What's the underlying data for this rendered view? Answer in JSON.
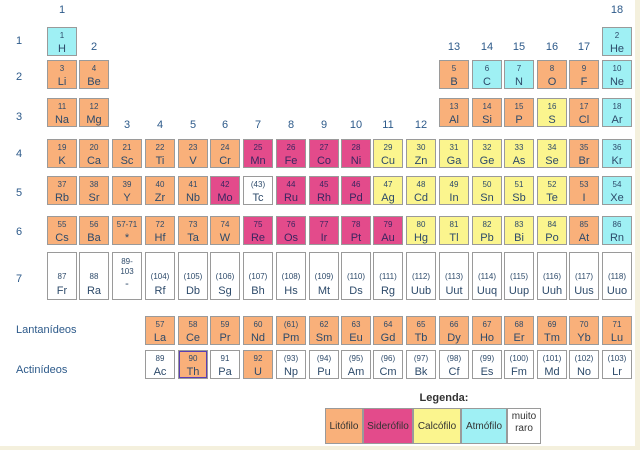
{
  "groups": [
    "1",
    "2",
    "3",
    "4",
    "5",
    "6",
    "7",
    "8",
    "9",
    "10",
    "11",
    "12",
    "13",
    "14",
    "15",
    "16",
    "17",
    "18"
  ],
  "periods": [
    "1",
    "2",
    "3",
    "4",
    "5",
    "6",
    "7"
  ],
  "row_labels": {
    "lanthanides": "Lantanídeos",
    "actinides": "Actinídeos"
  },
  "legend": {
    "title": "Legenda:",
    "items": [
      {
        "key": "litofilo",
        "label": "Litófilo",
        "color": "#f9b07a"
      },
      {
        "key": "siderofilo",
        "label": "Siderófilo",
        "color": "#e34b8b"
      },
      {
        "key": "calcofilo",
        "label": "Calcófilo",
        "color": "#fbf58e"
      },
      {
        "key": "atmofilo",
        "label": "Atmófilo",
        "color": "#9ff0f4"
      },
      {
        "key": "raro",
        "label": "muito raro",
        "color": "#ffffff"
      }
    ]
  },
  "elements": [
    {
      "n": "1",
      "s": "H",
      "c": "atmofilo",
      "row": 1,
      "col": 1
    },
    {
      "n": "2",
      "s": "He",
      "c": "atmofilo",
      "row": 1,
      "col": 18
    },
    {
      "n": "3",
      "s": "Li",
      "c": "litofilo",
      "row": 2,
      "col": 1
    },
    {
      "n": "4",
      "s": "Be",
      "c": "litofilo",
      "row": 2,
      "col": 2
    },
    {
      "n": "5",
      "s": "B",
      "c": "litofilo",
      "row": 2,
      "col": 13
    },
    {
      "n": "6",
      "s": "C",
      "c": "atmofilo",
      "row": 2,
      "col": 14
    },
    {
      "n": "7",
      "s": "N",
      "c": "atmofilo",
      "row": 2,
      "col": 15
    },
    {
      "n": "8",
      "s": "O",
      "c": "litofilo",
      "row": 2,
      "col": 16
    },
    {
      "n": "9",
      "s": "F",
      "c": "litofilo",
      "row": 2,
      "col": 17
    },
    {
      "n": "10",
      "s": "Ne",
      "c": "atmofilo",
      "row": 2,
      "col": 18
    },
    {
      "n": "11",
      "s": "Na",
      "c": "litofilo",
      "row": 3,
      "col": 1
    },
    {
      "n": "12",
      "s": "Mg",
      "c": "litofilo",
      "row": 3,
      "col": 2
    },
    {
      "n": "13",
      "s": "Al",
      "c": "litofilo",
      "row": 3,
      "col": 13
    },
    {
      "n": "14",
      "s": "Si",
      "c": "litofilo",
      "row": 3,
      "col": 14
    },
    {
      "n": "15",
      "s": "P",
      "c": "litofilo",
      "row": 3,
      "col": 15
    },
    {
      "n": "16",
      "s": "S",
      "c": "calcofilo",
      "row": 3,
      "col": 16
    },
    {
      "n": "17",
      "s": "Cl",
      "c": "litofilo",
      "row": 3,
      "col": 17
    },
    {
      "n": "18",
      "s": "Ar",
      "c": "atmofilo",
      "row": 3,
      "col": 18
    },
    {
      "n": "19",
      "s": "K",
      "c": "litofilo",
      "row": 4,
      "col": 1
    },
    {
      "n": "20",
      "s": "Ca",
      "c": "litofilo",
      "row": 4,
      "col": 2
    },
    {
      "n": "21",
      "s": "Sc",
      "c": "litofilo",
      "row": 4,
      "col": 3
    },
    {
      "n": "22",
      "s": "Ti",
      "c": "litofilo",
      "row": 4,
      "col": 4
    },
    {
      "n": "23",
      "s": "V",
      "c": "litofilo",
      "row": 4,
      "col": 5
    },
    {
      "n": "24",
      "s": "Cr",
      "c": "litofilo",
      "row": 4,
      "col": 6
    },
    {
      "n": "25",
      "s": "Mn",
      "c": "siderofilo",
      "row": 4,
      "col": 7
    },
    {
      "n": "26",
      "s": "Fe",
      "c": "siderofilo",
      "row": 4,
      "col": 8
    },
    {
      "n": "27",
      "s": "Co",
      "c": "siderofilo",
      "row": 4,
      "col": 9
    },
    {
      "n": "28",
      "s": "Ni",
      "c": "siderofilo",
      "row": 4,
      "col": 10
    },
    {
      "n": "29",
      "s": "Cu",
      "c": "calcofilo",
      "row": 4,
      "col": 11
    },
    {
      "n": "30",
      "s": "Zn",
      "c": "calcofilo",
      "row": 4,
      "col": 12
    },
    {
      "n": "31",
      "s": "Ga",
      "c": "calcofilo",
      "row": 4,
      "col": 13
    },
    {
      "n": "32",
      "s": "Ge",
      "c": "calcofilo",
      "row": 4,
      "col": 14
    },
    {
      "n": "33",
      "s": "As",
      "c": "calcofilo",
      "row": 4,
      "col": 15
    },
    {
      "n": "34",
      "s": "Se",
      "c": "calcofilo",
      "row": 4,
      "col": 16
    },
    {
      "n": "35",
      "s": "Br",
      "c": "litofilo",
      "row": 4,
      "col": 17
    },
    {
      "n": "36",
      "s": "Kr",
      "c": "atmofilo",
      "row": 4,
      "col": 18
    },
    {
      "n": "37",
      "s": "Rb",
      "c": "litofilo",
      "row": 5,
      "col": 1
    },
    {
      "n": "38",
      "s": "Sr",
      "c": "litofilo",
      "row": 5,
      "col": 2
    },
    {
      "n": "39",
      "s": "Y",
      "c": "litofilo",
      "row": 5,
      "col": 3
    },
    {
      "n": "40",
      "s": "Zr",
      "c": "litofilo",
      "row": 5,
      "col": 4
    },
    {
      "n": "41",
      "s": "Nb",
      "c": "litofilo",
      "row": 5,
      "col": 5
    },
    {
      "n": "42",
      "s": "Mo",
      "c": "siderofilo",
      "row": 5,
      "col": 6
    },
    {
      "n": "(43)",
      "s": "Tc",
      "c": "raro",
      "row": 5,
      "col": 7
    },
    {
      "n": "44",
      "s": "Ru",
      "c": "siderofilo",
      "row": 5,
      "col": 8
    },
    {
      "n": "45",
      "s": "Rh",
      "c": "siderofilo",
      "row": 5,
      "col": 9
    },
    {
      "n": "46",
      "s": "Pd",
      "c": "siderofilo",
      "row": 5,
      "col": 10
    },
    {
      "n": "47",
      "s": "Ag",
      "c": "calcofilo",
      "row": 5,
      "col": 11
    },
    {
      "n": "48",
      "s": "Cd",
      "c": "calcofilo",
      "row": 5,
      "col": 12
    },
    {
      "n": "49",
      "s": "In",
      "c": "calcofilo",
      "row": 5,
      "col": 13
    },
    {
      "n": "50",
      "s": "Sn",
      "c": "calcofilo",
      "row": 5,
      "col": 14
    },
    {
      "n": "51",
      "s": "Sb",
      "c": "calcofilo",
      "row": 5,
      "col": 15
    },
    {
      "n": "52",
      "s": "Te",
      "c": "calcofilo",
      "row": 5,
      "col": 16
    },
    {
      "n": "53",
      "s": "I",
      "c": "litofilo",
      "row": 5,
      "col": 17
    },
    {
      "n": "54",
      "s": "Xe",
      "c": "atmofilo",
      "row": 5,
      "col": 18
    },
    {
      "n": "55",
      "s": "Cs",
      "c": "litofilo",
      "row": 6,
      "col": 1
    },
    {
      "n": "56",
      "s": "Ba",
      "c": "litofilo",
      "row": 6,
      "col": 2
    },
    {
      "n": "57-71",
      "s": "*",
      "c": "litofilo",
      "row": 6,
      "col": 3
    },
    {
      "n": "72",
      "s": "Hf",
      "c": "litofilo",
      "row": 6,
      "col": 4
    },
    {
      "n": "73",
      "s": "Ta",
      "c": "litofilo",
      "row": 6,
      "col": 5
    },
    {
      "n": "74",
      "s": "W",
      "c": "litofilo",
      "row": 6,
      "col": 6
    },
    {
      "n": "75",
      "s": "Re",
      "c": "siderofilo",
      "row": 6,
      "col": 7
    },
    {
      "n": "76",
      "s": "Os",
      "c": "siderofilo",
      "row": 6,
      "col": 8
    },
    {
      "n": "77",
      "s": "Ir",
      "c": "siderofilo",
      "row": 6,
      "col": 9
    },
    {
      "n": "78",
      "s": "Pt",
      "c": "siderofilo",
      "row": 6,
      "col": 10
    },
    {
      "n": "79",
      "s": "Au",
      "c": "siderofilo",
      "row": 6,
      "col": 11
    },
    {
      "n": "80",
      "s": "Hg",
      "c": "calcofilo",
      "row": 6,
      "col": 12
    },
    {
      "n": "81",
      "s": "Tl",
      "c": "calcofilo",
      "row": 6,
      "col": 13
    },
    {
      "n": "82",
      "s": "Pb",
      "c": "calcofilo",
      "row": 6,
      "col": 14
    },
    {
      "n": "83",
      "s": "Bi",
      "c": "calcofilo",
      "row": 6,
      "col": 15
    },
    {
      "n": "84",
      "s": "Po",
      "c": "calcofilo",
      "row": 6,
      "col": 16
    },
    {
      "n": "85",
      "s": "At",
      "c": "litofilo",
      "row": 6,
      "col": 17
    },
    {
      "n": "86",
      "s": "Rn",
      "c": "atmofilo",
      "row": 6,
      "col": 18
    },
    {
      "n": "87",
      "s": "Fr",
      "c": "raro",
      "row": 7,
      "col": 1
    },
    {
      "n": "88",
      "s": "Ra",
      "c": "raro",
      "row": 7,
      "col": 2
    },
    {
      "n": "89-\n103",
      "s": "-",
      "c": "raro",
      "row": 7,
      "col": 3
    },
    {
      "n": "(104)",
      "s": "Rf",
      "c": "raro",
      "row": 7,
      "col": 4
    },
    {
      "n": "(105)",
      "s": "Db",
      "c": "raro",
      "row": 7,
      "col": 5
    },
    {
      "n": "(106)",
      "s": "Sg",
      "c": "raro",
      "row": 7,
      "col": 6
    },
    {
      "n": "(107)",
      "s": "Bh",
      "c": "raro",
      "row": 7,
      "col": 7
    },
    {
      "n": "(108)",
      "s": "Hs",
      "c": "raro",
      "row": 7,
      "col": 8
    },
    {
      "n": "(109)",
      "s": "Mt",
      "c": "raro",
      "row": 7,
      "col": 9
    },
    {
      "n": "(110)",
      "s": "Ds",
      "c": "raro",
      "row": 7,
      "col": 10
    },
    {
      "n": "(111)",
      "s": "Rg",
      "c": "raro",
      "row": 7,
      "col": 11
    },
    {
      "n": "(112)",
      "s": "Uub",
      "c": "raro",
      "row": 7,
      "col": 12
    },
    {
      "n": "(113)",
      "s": "Uut",
      "c": "raro",
      "row": 7,
      "col": 13
    },
    {
      "n": "(114)",
      "s": "Uuq",
      "c": "raro",
      "row": 7,
      "col": 14
    },
    {
      "n": "(115)",
      "s": "Uup",
      "c": "raro",
      "row": 7,
      "col": 15
    },
    {
      "n": "(116)",
      "s": "Uuh",
      "c": "raro",
      "row": 7,
      "col": 16
    },
    {
      "n": "(117)",
      "s": "Uus",
      "c": "raro",
      "row": 7,
      "col": 17
    },
    {
      "n": "(118)",
      "s": "Uuo",
      "c": "raro",
      "row": 7,
      "col": 18
    },
    {
      "n": "57",
      "s": "La",
      "c": "litofilo",
      "row": 8,
      "col": 4
    },
    {
      "n": "58",
      "s": "Ce",
      "c": "litofilo",
      "row": 8,
      "col": 5
    },
    {
      "n": "59",
      "s": "Pr",
      "c": "litofilo",
      "row": 8,
      "col": 6
    },
    {
      "n": "60",
      "s": "Nd",
      "c": "litofilo",
      "row": 8,
      "col": 7
    },
    {
      "n": "(61)",
      "s": "Pm",
      "c": "litofilo",
      "row": 8,
      "col": 8
    },
    {
      "n": "62",
      "s": "Sm",
      "c": "litofilo",
      "row": 8,
      "col": 9
    },
    {
      "n": "63",
      "s": "Eu",
      "c": "litofilo",
      "row": 8,
      "col": 10
    },
    {
      "n": "64",
      "s": "Gd",
      "c": "litofilo",
      "row": 8,
      "col": 11
    },
    {
      "n": "65",
      "s": "Tb",
      "c": "litofilo",
      "row": 8,
      "col": 12
    },
    {
      "n": "66",
      "s": "Dy",
      "c": "litofilo",
      "row": 8,
      "col": 13
    },
    {
      "n": "67",
      "s": "Ho",
      "c": "litofilo",
      "row": 8,
      "col": 14
    },
    {
      "n": "68",
      "s": "Er",
      "c": "litofilo",
      "row": 8,
      "col": 15
    },
    {
      "n": "69",
      "s": "Tm",
      "c": "litofilo",
      "row": 8,
      "col": 16
    },
    {
      "n": "70",
      "s": "Yb",
      "c": "litofilo",
      "row": 8,
      "col": 17
    },
    {
      "n": "71",
      "s": "Lu",
      "c": "litofilo",
      "row": 8,
      "col": 18
    },
    {
      "n": "89",
      "s": "Ac",
      "c": "raro",
      "row": 9,
      "col": 4
    },
    {
      "n": "90",
      "s": "Th",
      "c": "litofilo",
      "row": 9,
      "col": 5,
      "highlight": true
    },
    {
      "n": "91",
      "s": "Pa",
      "c": "raro",
      "row": 9,
      "col": 6
    },
    {
      "n": "92",
      "s": "U",
      "c": "litofilo",
      "row": 9,
      "col": 7
    },
    {
      "n": "(93)",
      "s": "Np",
      "c": "raro",
      "row": 9,
      "col": 8
    },
    {
      "n": "(94)",
      "s": "Pu",
      "c": "raro",
      "row": 9,
      "col": 9
    },
    {
      "n": "(95)",
      "s": "Am",
      "c": "raro",
      "row": 9,
      "col": 10
    },
    {
      "n": "(96)",
      "s": "Cm",
      "c": "raro",
      "row": 9,
      "col": 11
    },
    {
      "n": "(97)",
      "s": "Bk",
      "c": "raro",
      "row": 9,
      "col": 12
    },
    {
      "n": "(98)",
      "s": "Cf",
      "c": "raro",
      "row": 9,
      "col": 13
    },
    {
      "n": "(99)",
      "s": "Es",
      "c": "raro",
      "row": 9,
      "col": 14
    },
    {
      "n": "(100)",
      "s": "Fm",
      "c": "raro",
      "row": 9,
      "col": 15
    },
    {
      "n": "(101)",
      "s": "Md",
      "c": "raro",
      "row": 9,
      "col": 16
    },
    {
      "n": "(102)",
      "s": "No",
      "c": "raro",
      "row": 9,
      "col": 17
    },
    {
      "n": "(103)",
      "s": "Lr",
      "c": "raro",
      "row": 9,
      "col": 18
    }
  ]
}
